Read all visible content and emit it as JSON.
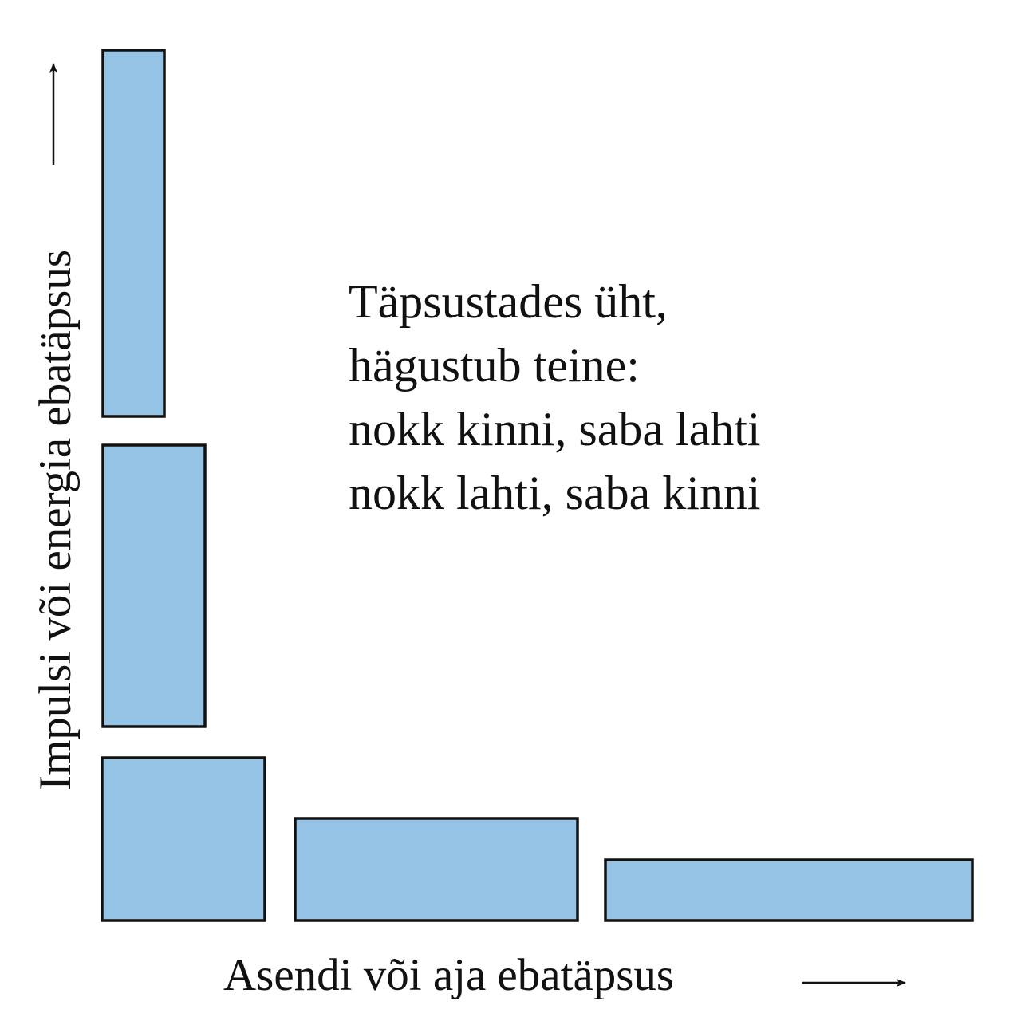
{
  "diagram": {
    "caption_lines": [
      "Täpsustades üht,",
      "hägustub teine:",
      "nokk kinni, saba lahti",
      "nokk lahti, saba kinni"
    ],
    "x_axis_label": "Asendi või aja ebatäpsus",
    "y_axis_label": "Impulsi või energia ebatäpsus",
    "colors": {
      "box_fill": "#95c3e6",
      "box_stroke": "#111111"
    },
    "boxes": [
      {
        "name": "box-tall-narrow"
      },
      {
        "name": "box-tall-medium"
      },
      {
        "name": "box-square"
      },
      {
        "name": "box-wide-medium"
      },
      {
        "name": "box-wide-flat"
      }
    ]
  }
}
